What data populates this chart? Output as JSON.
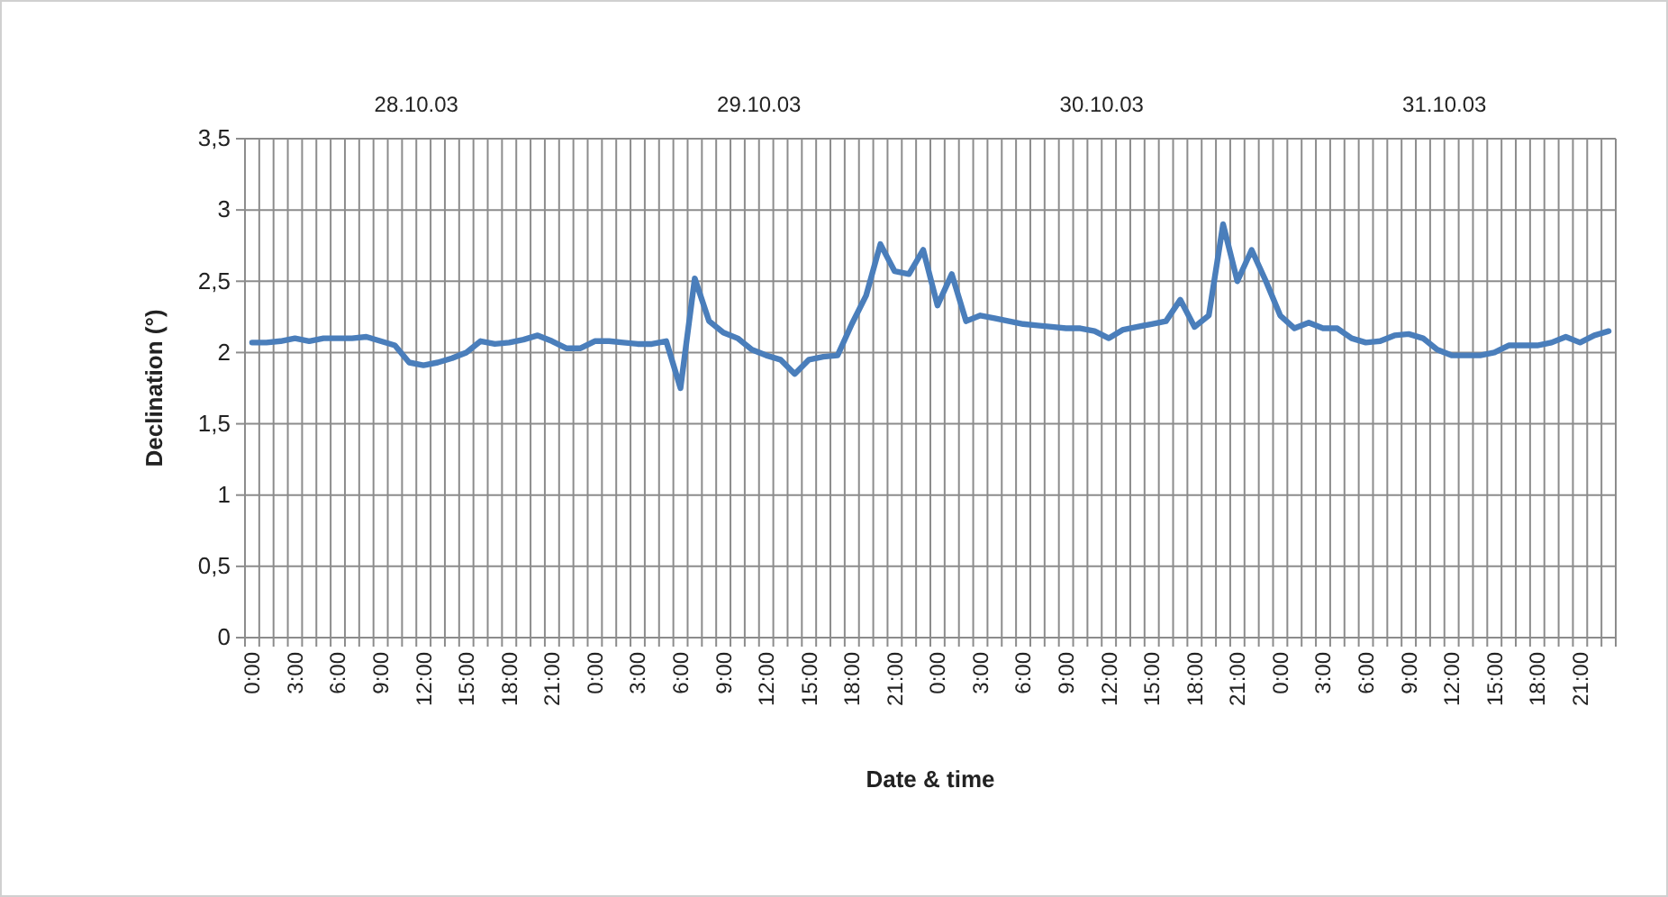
{
  "chart_data": {
    "type": "line",
    "xlabel": "Date & time",
    "ylabel": "Declination  (°)",
    "annotations": [
      "28.10.03",
      "29.10.03",
      "30.10.03",
      "31.10.03"
    ],
    "categories": [
      "0:00",
      null,
      null,
      "3:00",
      null,
      null,
      "6:00",
      null,
      null,
      "9:00",
      null,
      null,
      "12:00",
      null,
      null,
      "15:00",
      null,
      null,
      "18:00",
      null,
      null,
      "21:00",
      null,
      null,
      "0:00",
      null,
      null,
      "3:00",
      null,
      null,
      "6:00",
      null,
      null,
      "9:00",
      null,
      null,
      "12:00",
      null,
      null,
      "15:00",
      null,
      null,
      "18:00",
      null,
      null,
      "21:00",
      null,
      null,
      "0:00",
      null,
      null,
      "3:00",
      null,
      null,
      "6:00",
      null,
      null,
      "9:00",
      null,
      null,
      "12:00",
      null,
      null,
      "15:00",
      null,
      null,
      "18:00",
      null,
      null,
      "21:00",
      null,
      null,
      "0:00",
      null,
      null,
      "3:00",
      null,
      null,
      "6:00",
      null,
      null,
      "9:00",
      null,
      null,
      "12:00",
      null,
      null,
      "15:00",
      null,
      null,
      "18:00",
      null,
      null,
      "21:00",
      null,
      null
    ],
    "series": [
      {
        "color": "#4a7ebb",
        "values": [
          2.07,
          2.07,
          2.08,
          2.1,
          2.08,
          2.1,
          2.1,
          2.1,
          2.11,
          2.08,
          2.05,
          1.93,
          1.91,
          1.93,
          1.96,
          2.0,
          2.08,
          2.06,
          2.07,
          2.09,
          2.12,
          2.08,
          2.03,
          2.03,
          2.08,
          2.08,
          2.07,
          2.06,
          2.06,
          2.08,
          1.75,
          2.52,
          2.22,
          2.14,
          2.1,
          2.02,
          1.98,
          1.95,
          1.85,
          1.95,
          1.97,
          1.98,
          2.2,
          2.4,
          2.76,
          2.57,
          2.55,
          2.72,
          2.33,
          2.55,
          2.22,
          2.26,
          2.24,
          2.22,
          2.2,
          2.19,
          2.18,
          2.17,
          2.17,
          2.15,
          2.1,
          2.16,
          2.18,
          2.2,
          2.22,
          2.37,
          2.18,
          2.26,
          2.9,
          2.5,
          2.72,
          2.5,
          2.26,
          2.17,
          2.21,
          2.17,
          2.17,
          2.1,
          2.07,
          2.08,
          2.12,
          2.13,
          2.1,
          2.02,
          1.98,
          1.98,
          1.98,
          2.0,
          2.05,
          2.05,
          2.05,
          2.07,
          2.11,
          2.07,
          2.12,
          2.15
        ]
      }
    ],
    "ylim": [
      0,
      3.5
    ],
    "yticks": [
      0,
      {
        "value": 0.5,
        "label": "0,5"
      },
      1,
      {
        "value": 1.5,
        "label": "1,5"
      },
      2,
      {
        "value": 2.5,
        "label": "2,5"
      },
      3,
      {
        "value": 3.5,
        "label": "3,5"
      }
    ],
    "grid": true,
    "marker": "none",
    "line_style": "solid"
  }
}
